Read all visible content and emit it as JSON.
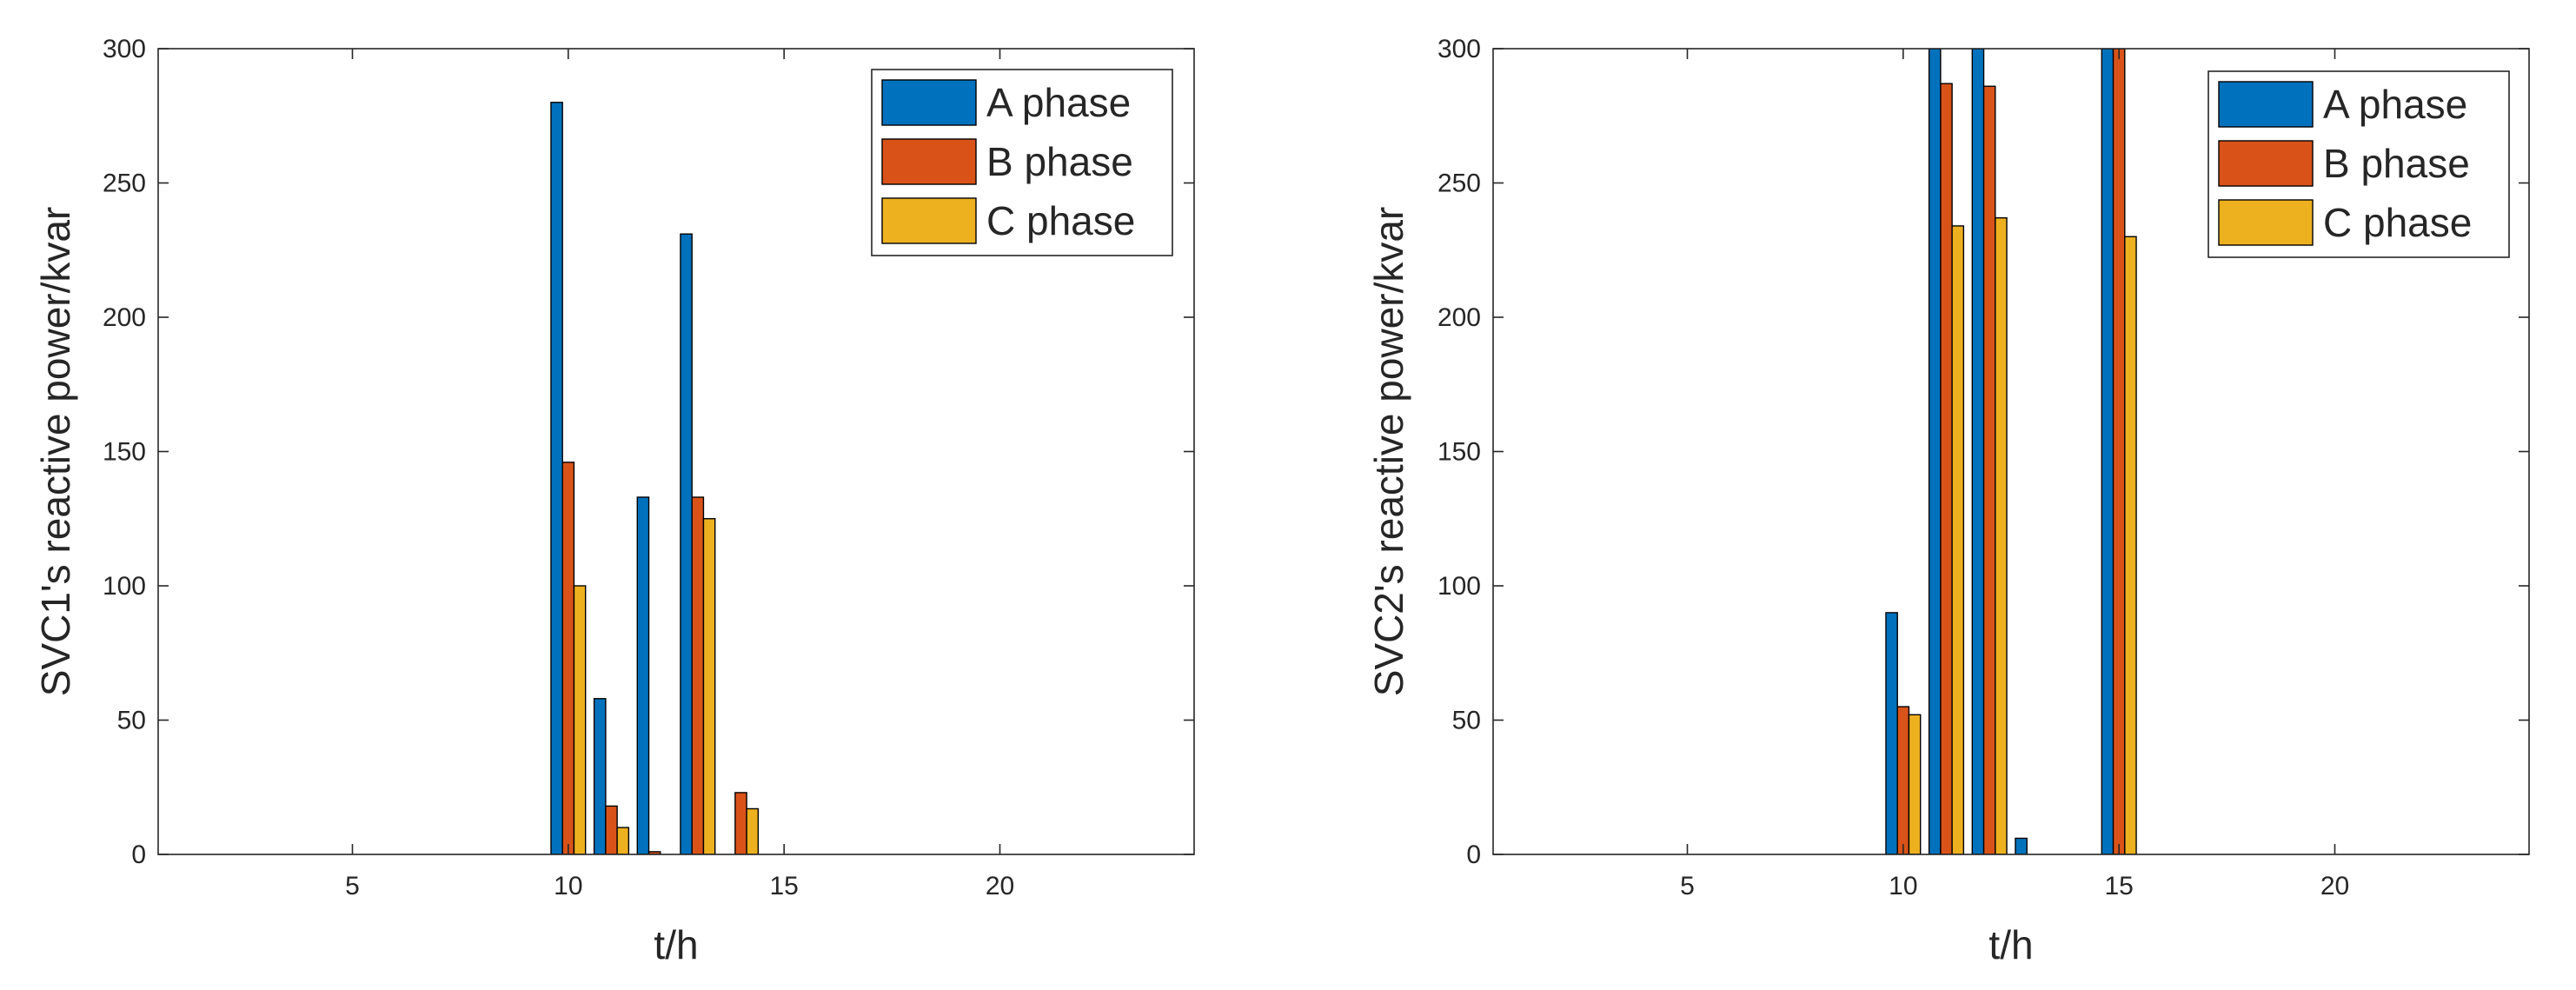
{
  "chart_data": [
    {
      "type": "bar",
      "xlabel": "t/h",
      "ylabel": "SVC1's reactive power/kvar",
      "xlim": [
        0.5,
        24.5
      ],
      "ylim": [
        0,
        300
      ],
      "xticks": [
        5,
        10,
        15,
        20
      ],
      "yticks": [
        0,
        50,
        100,
        150,
        200,
        250,
        300
      ],
      "grid": false,
      "legend_position": "top-right",
      "categories": [
        1,
        2,
        3,
        4,
        5,
        6,
        7,
        8,
        9,
        10,
        11,
        12,
        13,
        14,
        15,
        16,
        17,
        18,
        19,
        20,
        21,
        22,
        23,
        24
      ],
      "series": [
        {
          "name": "A phase",
          "color": "#0072BD",
          "values": [
            0,
            0,
            0,
            0,
            0,
            0,
            0,
            0,
            0,
            280,
            58,
            133,
            231,
            0,
            0,
            0,
            0,
            0,
            0,
            0,
            0,
            0,
            0,
            0
          ]
        },
        {
          "name": "B phase",
          "color": "#D95319",
          "values": [
            0,
            0,
            0,
            0,
            0,
            0,
            0,
            0,
            0,
            146,
            18,
            1,
            133,
            23,
            0,
            0,
            0,
            0,
            0,
            0,
            0,
            0,
            0,
            0
          ]
        },
        {
          "name": "C phase",
          "color": "#EDB120",
          "values": [
            0,
            0,
            0,
            0,
            0,
            0,
            0,
            0,
            0,
            100,
            10,
            0,
            125,
            17,
            0,
            0,
            0,
            0,
            0,
            0,
            0,
            0,
            0,
            0
          ]
        }
      ]
    },
    {
      "type": "bar",
      "xlabel": "t/h",
      "ylabel": "SVC2's reactive power/kvar",
      "xlim": [
        0.5,
        24.5
      ],
      "ylim": [
        0,
        300
      ],
      "xticks": [
        5,
        10,
        15,
        20
      ],
      "yticks": [
        0,
        50,
        100,
        150,
        200,
        250,
        300
      ],
      "grid": false,
      "legend_position": "top-right",
      "categories": [
        1,
        2,
        3,
        4,
        5,
        6,
        7,
        8,
        9,
        10,
        11,
        12,
        13,
        14,
        15,
        16,
        17,
        18,
        19,
        20,
        21,
        22,
        23,
        24
      ],
      "series": [
        {
          "name": "A phase",
          "color": "#0072BD",
          "values": [
            0,
            0,
            0,
            0,
            0,
            0,
            0,
            0,
            0,
            90,
            300,
            300,
            6,
            0,
            300,
            0,
            0,
            0,
            0,
            0,
            0,
            0,
            0,
            0
          ]
        },
        {
          "name": "B phase",
          "color": "#D95319",
          "values": [
            0,
            0,
            0,
            0,
            0,
            0,
            0,
            0,
            0,
            55,
            287,
            286,
            0,
            0,
            300,
            0,
            0,
            0,
            0,
            0,
            0,
            0,
            0,
            0
          ]
        },
        {
          "name": "C phase",
          "color": "#EDB120",
          "values": [
            0,
            0,
            0,
            0,
            0,
            0,
            0,
            0,
            0,
            52,
            234,
            237,
            0,
            0,
            230,
            0,
            0,
            0,
            0,
            0,
            0,
            0,
            0,
            0
          ]
        }
      ]
    }
  ]
}
